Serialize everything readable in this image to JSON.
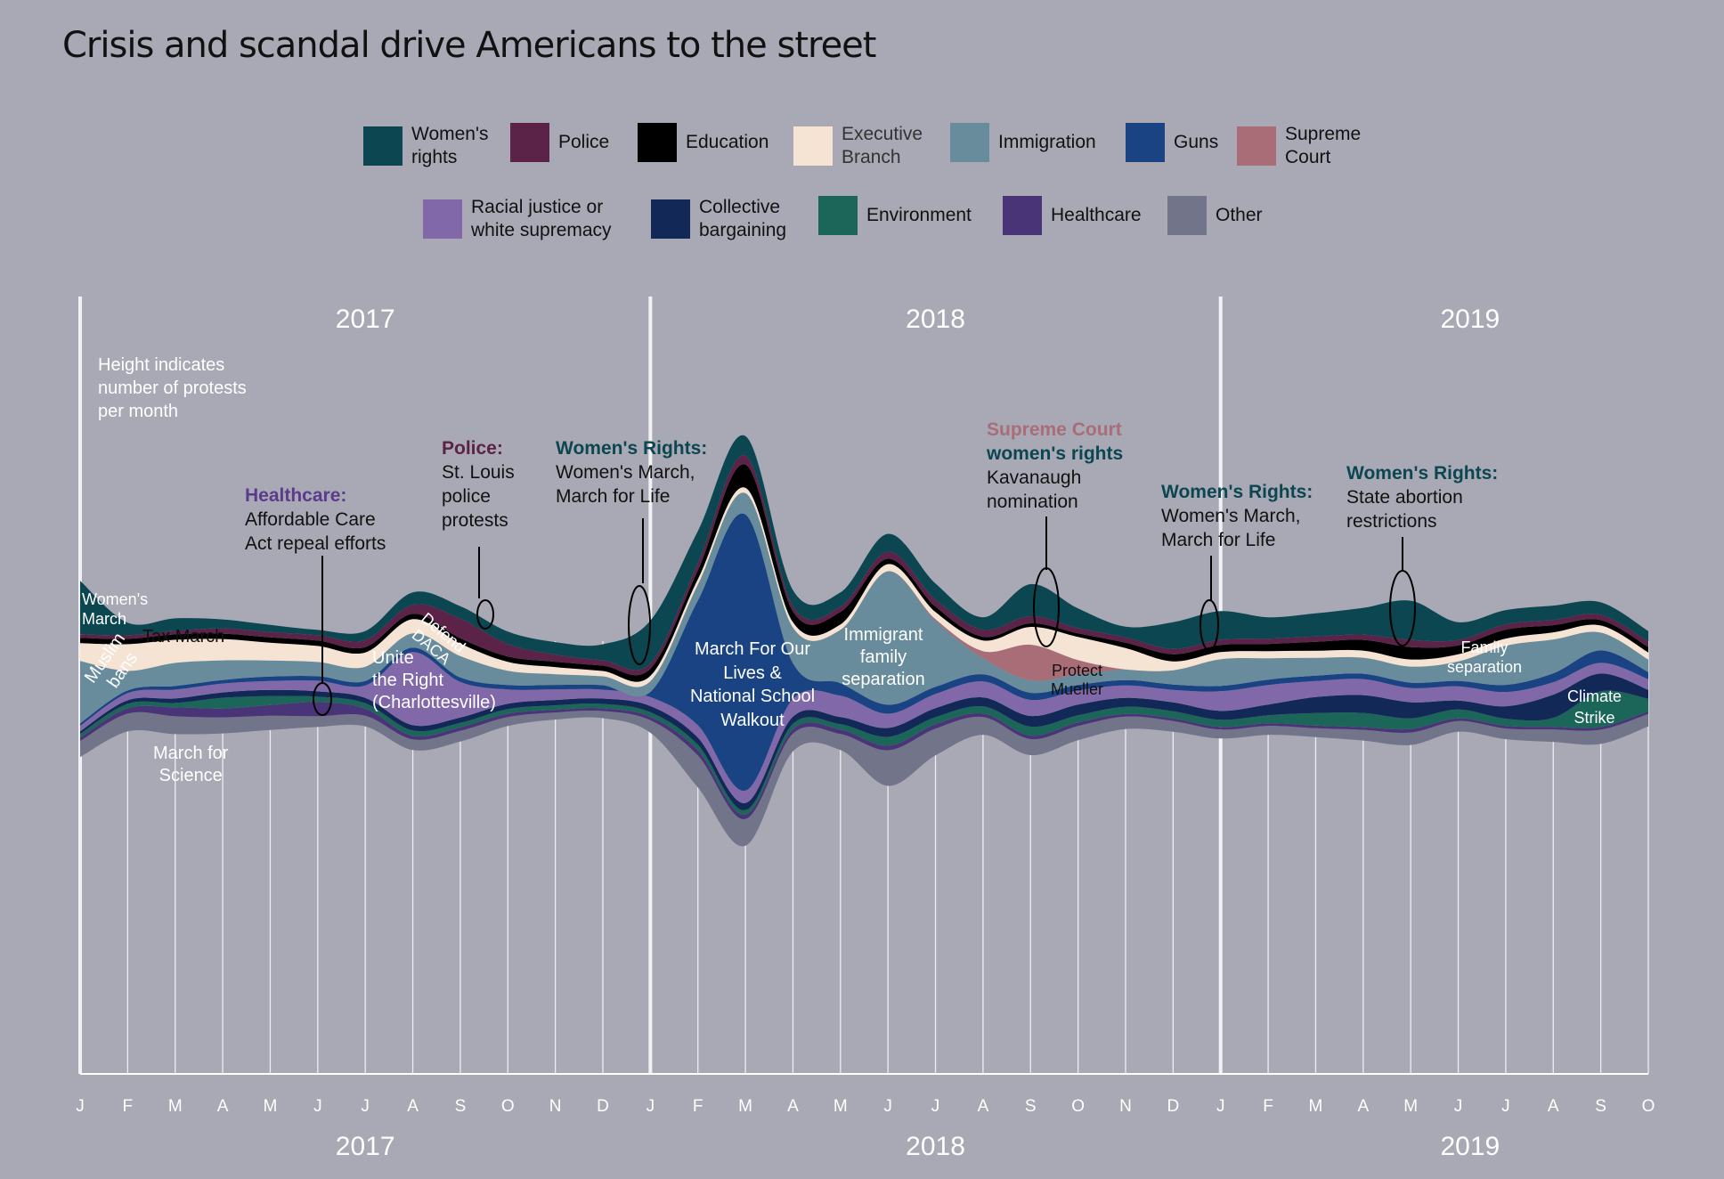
{
  "title": "Crisis and scandal drive Americans to the street",
  "legend": [
    {
      "key": "womens",
      "label": "Women's\nrights",
      "color": "#0b4651"
    },
    {
      "key": "police",
      "label": "Police",
      "color": "#5a2347"
    },
    {
      "key": "education",
      "label": "Education",
      "color": "#000000"
    },
    {
      "key": "executive",
      "label": "Executive\nBranch",
      "color": "#f5e3d3"
    },
    {
      "key": "immigration",
      "label": "Immigration",
      "color": "#688c9b"
    },
    {
      "key": "guns",
      "label": "Guns",
      "color": "#1a4383"
    },
    {
      "key": "supreme",
      "label": "Supreme\nCourt",
      "color": "#a96d78"
    },
    {
      "key": "racial",
      "label": "Racial justice or\nwhite supremacy",
      "color": "#8169a9"
    },
    {
      "key": "collective",
      "label": "Collective\nbargaining",
      "color": "#122856"
    },
    {
      "key": "environment",
      "label": "Environment",
      "color": "#1b6559"
    },
    {
      "key": "healthcare",
      "label": "Healthcare",
      "color": "#4a3478"
    },
    {
      "key": "other",
      "label": "Other",
      "color": "#727489"
    }
  ],
  "note": "Height indicates\nnumber of protests\nper month",
  "annotations": [
    {
      "heading": "Healthcare:",
      "heading_color": "#5a3b8c",
      "text": "Affordable Care\nAct repeal efforts"
    },
    {
      "heading": "Police:",
      "heading_color": "#5a2347",
      "text": "St. Louis\npolice\nprotests"
    },
    {
      "heading": "Women's Rights:",
      "heading_color": "#0b4651",
      "text": "Women's March,\nMarch for Life"
    },
    {
      "heading": "Supreme Court",
      "heading_color": "#a96d78",
      "heading2": "women's rights",
      "heading2_color": "#0b4651",
      "text": "Kavanaugh\nnomination"
    },
    {
      "heading": "Women's Rights:",
      "heading_color": "#0b4651",
      "text": "Women's March,\nMarch for Life"
    },
    {
      "heading": "Women's Rights:",
      "heading_color": "#0b4651",
      "text": "State abortion\nrestrictions"
    }
  ],
  "inline_labels": [
    "Women's\nMarch",
    "Tax March",
    "Muslim\nbans",
    "March for\nScience",
    "Defend\nDACA",
    "Unite\nthe Right\n(Charlottesville)",
    "March For Our\nLives &\nNational School\nWalkout",
    "Immigrant\nfamily\nseparation",
    "Protect\nMueller",
    "Family\nseparation",
    "Climate\nStrike"
  ],
  "chart_data": {
    "type": "area",
    "subtype": "streamgraph",
    "x": [
      "2017-01",
      "2017-02",
      "2017-03",
      "2017-04",
      "2017-05",
      "2017-06",
      "2017-07",
      "2017-08",
      "2017-09",
      "2017-10",
      "2017-11",
      "2017-12",
      "2018-01",
      "2018-02",
      "2018-03",
      "2018-04",
      "2018-05",
      "2018-06",
      "2018-07",
      "2018-08",
      "2018-09",
      "2018-10",
      "2018-11",
      "2018-12",
      "2019-01",
      "2019-02",
      "2019-03",
      "2019-04",
      "2019-05",
      "2019-06",
      "2019-07",
      "2019-08",
      "2019-09",
      "2019-10"
    ],
    "month_ticks": [
      "J",
      "F",
      "M",
      "A",
      "M",
      "J",
      "J",
      "A",
      "S",
      "O",
      "N",
      "D",
      "J",
      "F",
      "M",
      "A",
      "M",
      "J",
      "J",
      "A",
      "S",
      "O",
      "N",
      "D",
      "J",
      "F",
      "M",
      "A",
      "M",
      "J",
      "J",
      "A",
      "S",
      "O"
    ],
    "years": [
      "2017",
      "2018",
      "2019"
    ],
    "grid": true,
    "legend_position": "top",
    "series": [
      {
        "name": "Other",
        "values": [
          18,
          20,
          20,
          18,
          16,
          12,
          12,
          12,
          12,
          10,
          8,
          8,
          14,
          36,
          30,
          20,
          18,
          40,
          30,
          20,
          18,
          16,
          14,
          12,
          10,
          10,
          10,
          12,
          14,
          12,
          12,
          14,
          16,
          14
        ]
      },
      {
        "name": "Healthcare",
        "values": [
          4,
          6,
          10,
          10,
          12,
          16,
          8,
          4,
          4,
          4,
          3,
          3,
          4,
          6,
          5,
          5,
          5,
          5,
          5,
          4,
          4,
          4,
          3,
          3,
          3,
          3,
          3,
          3,
          4,
          3,
          3,
          3,
          3,
          3
        ]
      },
      {
        "name": "Environment",
        "values": [
          4,
          5,
          5,
          12,
          10,
          6,
          6,
          6,
          5,
          5,
          5,
          5,
          5,
          6,
          5,
          6,
          6,
          10,
          8,
          8,
          10,
          8,
          8,
          8,
          8,
          9,
          14,
          16,
          12,
          10,
          8,
          10,
          40,
          14
        ]
      },
      {
        "name": "Collective bargaining",
        "values": [
          3,
          4,
          5,
          6,
          7,
          6,
          6,
          6,
          6,
          6,
          6,
          6,
          7,
          8,
          8,
          8,
          8,
          10,
          10,
          10,
          12,
          12,
          10,
          10,
          10,
          12,
          18,
          20,
          18,
          10,
          14,
          26,
          20,
          10
        ]
      },
      {
        "name": "Racial justice or white supremacy",
        "values": [
          6,
          8,
          10,
          10,
          10,
          12,
          14,
          82,
          40,
          16,
          12,
          10,
          10,
          14,
          14,
          20,
          24,
          16,
          16,
          18,
          18,
          16,
          14,
          14,
          22,
          22,
          18,
          18,
          16,
          16,
          16,
          14,
          12,
          12
        ]
      },
      {
        "name": "Guns",
        "values": [
          3,
          3,
          4,
          4,
          5,
          5,
          5,
          5,
          5,
          5,
          5,
          5,
          6,
          140,
          310,
          40,
          14,
          10,
          8,
          8,
          8,
          6,
          6,
          6,
          6,
          6,
          6,
          6,
          6,
          6,
          8,
          10,
          14,
          8
        ]
      },
      {
        "name": "Immigration",
        "values": [
          70,
          22,
          26,
          22,
          18,
          16,
          16,
          16,
          24,
          16,
          12,
          10,
          12,
          18,
          24,
          40,
          60,
          150,
          74,
          18,
          14,
          12,
          12,
          16,
          30,
          24,
          20,
          18,
          18,
          22,
          44,
          38,
          20,
          14
        ]
      },
      {
        "name": "Supreme Court",
        "values": [
          0,
          0,
          0,
          0,
          0,
          0,
          0,
          0,
          0,
          0,
          0,
          0,
          0,
          0,
          0,
          0,
          0,
          0,
          2,
          8,
          40,
          16,
          0,
          0,
          0,
          0,
          0,
          0,
          0,
          0,
          0,
          0,
          0,
          0
        ]
      },
      {
        "name": "Executive Branch",
        "values": [
          20,
          30,
          26,
          24,
          20,
          18,
          16,
          16,
          14,
          10,
          8,
          6,
          6,
          6,
          6,
          6,
          6,
          8,
          8,
          12,
          20,
          26,
          24,
          10,
          8,
          8,
          8,
          8,
          8,
          8,
          8,
          8,
          8,
          8
        ]
      },
      {
        "name": "Education",
        "values": [
          6,
          6,
          6,
          6,
          6,
          6,
          6,
          6,
          6,
          6,
          6,
          6,
          8,
          10,
          26,
          12,
          14,
          6,
          6,
          4,
          4,
          4,
          6,
          8,
          8,
          8,
          10,
          12,
          14,
          10,
          10,
          8,
          6,
          6
        ]
      },
      {
        "name": "Police",
        "values": [
          4,
          4,
          4,
          6,
          6,
          6,
          8,
          10,
          22,
          14,
          8,
          6,
          6,
          8,
          10,
          6,
          6,
          8,
          8,
          8,
          8,
          6,
          6,
          6,
          6,
          6,
          6,
          6,
          8,
          6,
          6,
          6,
          6,
          6
        ]
      },
      {
        "name": "Women's rights",
        "values": [
          60,
          14,
          14,
          10,
          8,
          6,
          10,
          14,
          14,
          14,
          14,
          18,
          48,
          36,
          22,
          18,
          16,
          20,
          18,
          14,
          36,
          22,
          12,
          30,
          32,
          24,
          26,
          30,
          44,
          20,
          16,
          16,
          14,
          12
        ]
      }
    ]
  }
}
